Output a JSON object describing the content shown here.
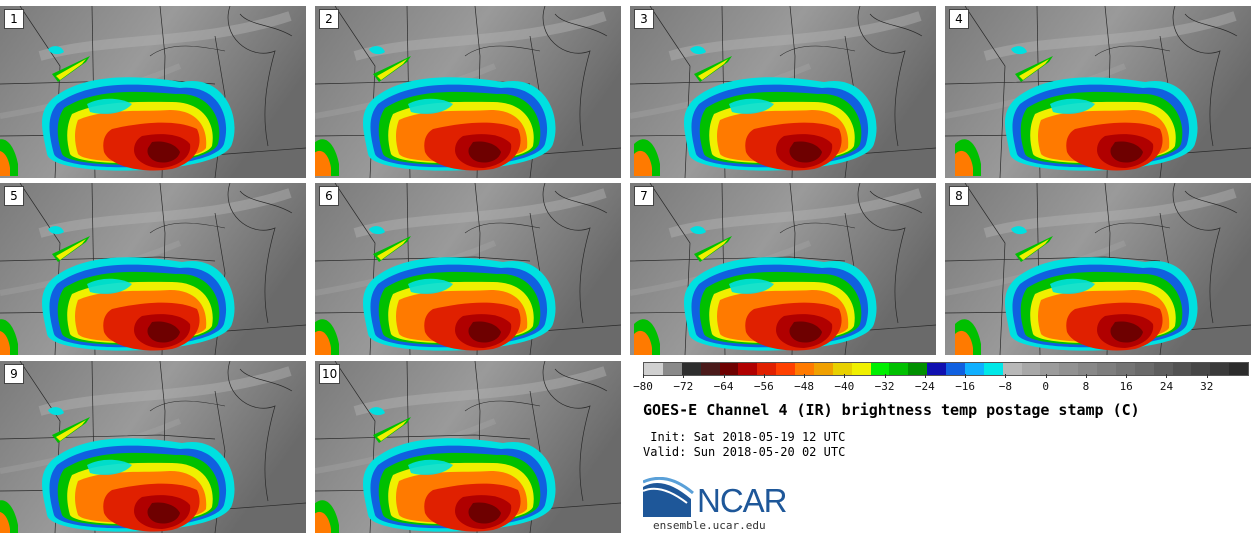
{
  "panels": [
    {
      "label": "1"
    },
    {
      "label": "2"
    },
    {
      "label": "3"
    },
    {
      "label": "4"
    },
    {
      "label": "5"
    },
    {
      "label": "6"
    },
    {
      "label": "7"
    },
    {
      "label": "8"
    },
    {
      "label": "9"
    },
    {
      "label": "10"
    }
  ],
  "colorbar": {
    "min": -80,
    "max": 40,
    "ticks": [
      "−80",
      "−72",
      "−64",
      "−56",
      "−48",
      "−40",
      "−32",
      "−24",
      "−16",
      "−8",
      "0",
      "8",
      "16",
      "24",
      "32"
    ],
    "tick_values": [
      -80,
      -72,
      -64,
      -56,
      -48,
      -40,
      -32,
      -24,
      -16,
      -8,
      0,
      8,
      16,
      24,
      32
    ],
    "colors": [
      "#d0d0d0",
      "#8a8a8a",
      "#2e2e2e",
      "#4a1a1a",
      "#6e0000",
      "#b00000",
      "#e02000",
      "#ff4000",
      "#ff7a00",
      "#f0a000",
      "#e8d000",
      "#f0f000",
      "#00f000",
      "#00c000",
      "#009000",
      "#1010b0",
      "#1060e0",
      "#10b0ff",
      "#00e8e8",
      "#b8b8b8",
      "#a8a8a8",
      "#9c9c9c",
      "#929292",
      "#888888",
      "#7e7e7e",
      "#747474",
      "#6a6a6a",
      "#5e5e5e",
      "#525252",
      "#464646",
      "#3a3a3a",
      "#2c2c2c"
    ]
  },
  "title": "GOES-E Channel 4 (IR) brightness temp postage stamp (C)",
  "init": " Init: Sat 2018-05-19 12 UTC",
  "valid": "Valid: Sun 2018-05-20 02 UTC",
  "logo": {
    "text": "NCAR",
    "site": "ensemble.ucar.edu"
  }
}
